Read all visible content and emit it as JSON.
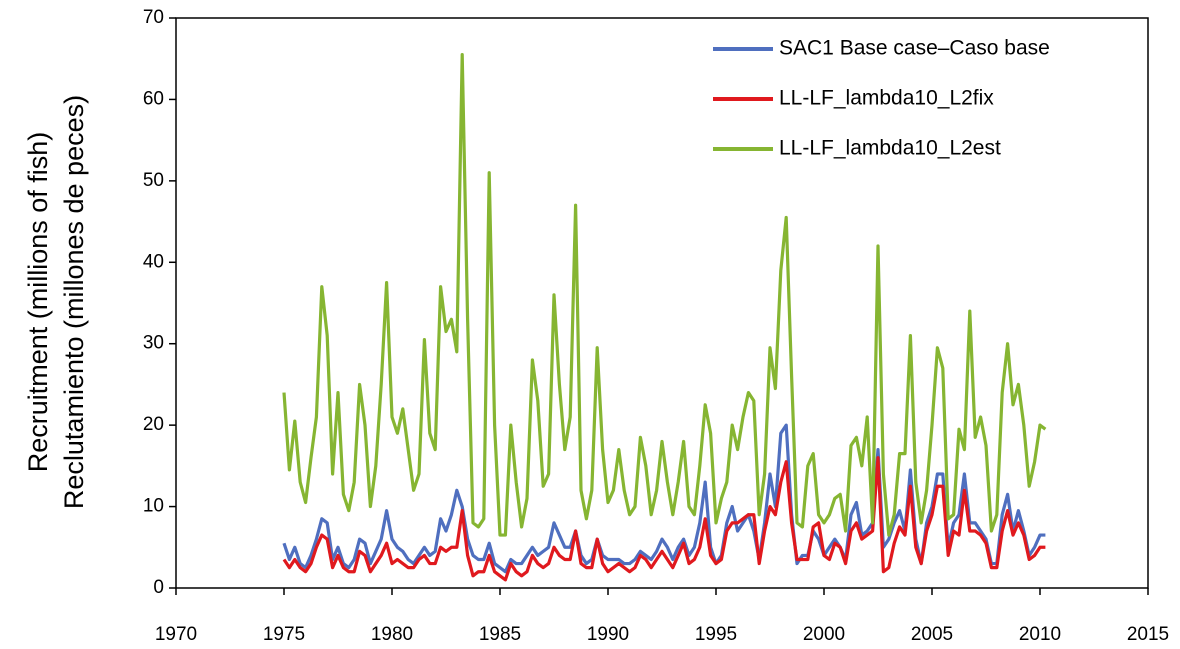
{
  "chart_data": {
    "type": "line",
    "ylabel": [
      "Recruitment (millions of fish)",
      "Reclutamiento (millones de peces)"
    ],
    "xlim": [
      1970,
      2015
    ],
    "xticks": [
      1970,
      1975,
      1980,
      1985,
      1990,
      1995,
      2000,
      2005,
      2010,
      2015
    ],
    "ylim": [
      0,
      70
    ],
    "yticks": [
      0,
      10,
      20,
      30,
      40,
      50,
      60,
      70
    ],
    "legend": "upper right",
    "x": [
      1975,
      1975.25,
      1975.5,
      1975.75,
      1976,
      1976.25,
      1976.5,
      1976.75,
      1977,
      1977.25,
      1977.5,
      1977.75,
      1978,
      1978.25,
      1978.5,
      1978.75,
      1979,
      1979.25,
      1979.5,
      1979.75,
      1980,
      1980.25,
      1980.5,
      1980.75,
      1981,
      1981.25,
      1981.5,
      1981.75,
      1982,
      1982.25,
      1982.5,
      1982.75,
      1983,
      1983.25,
      1983.5,
      1983.75,
      1984,
      1984.25,
      1984.5,
      1984.75,
      1985,
      1985.25,
      1985.5,
      1985.75,
      1986,
      1986.25,
      1986.5,
      1986.75,
      1987,
      1987.25,
      1987.5,
      1987.75,
      1988,
      1988.25,
      1988.5,
      1988.75,
      1989,
      1989.25,
      1989.5,
      1989.75,
      1990,
      1990.25,
      1990.5,
      1990.75,
      1991,
      1991.25,
      1991.5,
      1991.75,
      1992,
      1992.25,
      1992.5,
      1992.75,
      1993,
      1993.25,
      1993.5,
      1993.75,
      1994,
      1994.25,
      1994.5,
      1994.75,
      1995,
      1995.25,
      1995.5,
      1995.75,
      1996,
      1996.25,
      1996.5,
      1996.75,
      1997,
      1997.25,
      1997.5,
      1997.75,
      1998,
      1998.25,
      1998.5,
      1998.75,
      1999,
      1999.25,
      1999.5,
      1999.75,
      2000,
      2000.25,
      2000.5,
      2000.75,
      2001,
      2001.25,
      2001.5,
      2001.75,
      2002,
      2002.25,
      2002.5,
      2002.75,
      2003,
      2003.25,
      2003.5,
      2003.75,
      2004,
      2004.25,
      2004.5,
      2004.75,
      2005,
      2005.25,
      2005.5,
      2005.75,
      2006,
      2006.25,
      2006.5,
      2006.75,
      2007,
      2007.25,
      2007.5,
      2007.75,
      2008,
      2008.25,
      2008.5,
      2008.75,
      2009,
      2009.25,
      2009.5,
      2009.75,
      2010,
      2010.25
    ],
    "series": [
      {
        "name": "SAC1 Base case–Caso base",
        "color": "#4f6fbf",
        "values": [
          5.5,
          3.5,
          5,
          3,
          2.5,
          4,
          6,
          8.5,
          8,
          3.5,
          5,
          3,
          2.5,
          3.5,
          6,
          5.5,
          3,
          4.5,
          6,
          9.5,
          6,
          5,
          4.5,
          3.5,
          3,
          4,
          5,
          4,
          4.5,
          8.5,
          7,
          9,
          12,
          10,
          6,
          4,
          3.5,
          3.5,
          5.5,
          3,
          2.5,
          2,
          3.5,
          3,
          3,
          4,
          5,
          4,
          4.5,
          5,
          8,
          6.5,
          5,
          5,
          7,
          4,
          3,
          3.5,
          6,
          4,
          3.5,
          3.5,
          3.5,
          3,
          3,
          3.5,
          4.5,
          4,
          3.5,
          4.5,
          6,
          5,
          3.5,
          5,
          6,
          4,
          5,
          8,
          13,
          5,
          3,
          4,
          8,
          10,
          7,
          8,
          9,
          7,
          3.5,
          8,
          14,
          10,
          19,
          20,
          9,
          3,
          4,
          4,
          7,
          6,
          4,
          5,
          6,
          5,
          3.5,
          9,
          10.5,
          6.5,
          7,
          8,
          17,
          5,
          6,
          8,
          9.5,
          7,
          14.5,
          6,
          3,
          8,
          10,
          14,
          14,
          5,
          8,
          9,
          14,
          8,
          8,
          7,
          6,
          3,
          3,
          9,
          11.5,
          7,
          9.5,
          7,
          4,
          5,
          6.5,
          6.5
        ]
      },
      {
        "name": "LL-LF_lambda10_L2fix",
        "color": "#e0191e",
        "values": [
          3.5,
          2.5,
          3.5,
          2.5,
          2,
          3,
          5,
          6.5,
          6,
          2.5,
          4,
          2.5,
          2,
          2,
          4.5,
          4,
          2,
          3,
          4,
          5.5,
          3,
          3.5,
          3,
          2.5,
          2.5,
          3.5,
          4,
          3,
          3,
          5,
          4.5,
          5,
          5,
          9.5,
          4,
          1.5,
          2,
          2,
          4,
          2,
          1.5,
          1,
          3,
          2,
          1.5,
          2,
          4,
          3,
          2.5,
          3,
          5,
          4,
          3.5,
          3.5,
          7,
          3,
          2.5,
          2.5,
          6,
          3,
          2,
          2.5,
          3,
          2.5,
          2,
          2.5,
          4,
          3.5,
          2.5,
          3.5,
          4.5,
          3.5,
          2.5,
          4,
          5.5,
          3,
          3.5,
          5,
          8.5,
          4,
          3,
          3.5,
          7,
          8,
          8,
          8.5,
          9,
          9,
          3,
          7,
          10,
          9,
          13,
          15.5,
          8,
          3.5,
          3.5,
          3.5,
          7.5,
          8,
          4,
          3.5,
          5.5,
          5,
          3,
          7,
          8,
          6,
          6.5,
          7,
          16,
          2,
          2.5,
          5.5,
          7.5,
          6.5,
          12.5,
          5,
          3,
          7,
          9,
          12.5,
          12.5,
          4,
          7,
          6.5,
          12,
          7,
          7,
          6.5,
          5.5,
          2.5,
          2.5,
          7,
          9.5,
          6.5,
          8,
          6.5,
          3.5,
          4,
          5,
          5
        ]
      },
      {
        "name": "LL-LF_lambda10_L2est",
        "color": "#86b532",
        "values": [
          24,
          14.5,
          20.5,
          13,
          10.5,
          16,
          21,
          37,
          31,
          14,
          24,
          11.5,
          9.5,
          13,
          25,
          20,
          10,
          15,
          25,
          37.5,
          21,
          19,
          22,
          17,
          12,
          14,
          30.5,
          19,
          17,
          37,
          31.5,
          33,
          29,
          65.5,
          33,
          8,
          7.5,
          8.5,
          51,
          20,
          6.5,
          6.5,
          20,
          13,
          7.5,
          11,
          28,
          23,
          12.5,
          14,
          36,
          25,
          17,
          21,
          47,
          12,
          8.5,
          12,
          29.5,
          17,
          10.5,
          12,
          17,
          12,
          9,
          10,
          18.5,
          15,
          9,
          12,
          18,
          13,
          9,
          13,
          18,
          10,
          9,
          15,
          22.5,
          19,
          8,
          11,
          13,
          20,
          17,
          21,
          24,
          23,
          9,
          14,
          29.5,
          24.5,
          39,
          45.5,
          26,
          8,
          7.5,
          15,
          16.5,
          9,
          8,
          9,
          11,
          11.5,
          7,
          17.5,
          18.5,
          15,
          21,
          8,
          42,
          14,
          6.5,
          9,
          16.5,
          16.5,
          31,
          13,
          8,
          12,
          20,
          29.5,
          27,
          8.5,
          9,
          19.5,
          17,
          34,
          18.5,
          21,
          17.5,
          7,
          9,
          24,
          30,
          22.5,
          25,
          20,
          12.5,
          15.5,
          20,
          19.5
        ]
      }
    ]
  }
}
